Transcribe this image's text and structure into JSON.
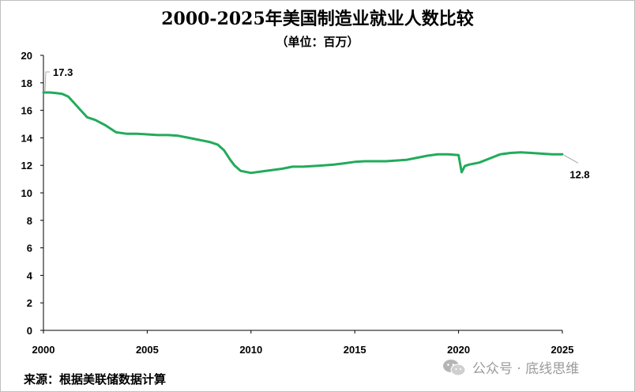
{
  "title": "2000-2025年美国制造业就业人数比较",
  "subtitle": "（单位：百万）",
  "source": "来源：根据美联储数据计算",
  "watermark": {
    "icon": "wechat-icon",
    "text": "公众号 · 底线思维"
  },
  "colors": {
    "line": "#22ab5a",
    "axis": "#000000",
    "leader": "#a6a6a6"
  },
  "chart_data": {
    "type": "line",
    "title": "2000-2025年美国制造业就业人数比较",
    "subtitle": "（单位：百万）",
    "xlim": [
      2000,
      2025
    ],
    "ylim": [
      0,
      20
    ],
    "xticks": [
      2000,
      2005,
      2010,
      2015,
      2020,
      2025
    ],
    "yticks": [
      0,
      2,
      4,
      6,
      8,
      10,
      12,
      14,
      16,
      18,
      20
    ],
    "grid": false,
    "series": [
      {
        "x": [
          2000,
          2000.3,
          2000.6,
          2000.9,
          2001.2,
          2001.5,
          2001.8,
          2002.1,
          2002.5,
          2003.0,
          2003.5,
          2004.0,
          2004.5,
          2005.0,
          2005.5,
          2006.0,
          2006.5,
          2007.0,
          2007.5,
          2008.0,
          2008.4,
          2008.7,
          2009.0,
          2009.2,
          2009.5,
          2010.0,
          2010.5,
          2011.0,
          2011.5,
          2012.0,
          2012.5,
          2013.0,
          2013.5,
          2014.0,
          2014.5,
          2015.0,
          2015.5,
          2016.0,
          2016.5,
          2017.0,
          2017.5,
          2018.0,
          2018.5,
          2019.0,
          2019.5,
          2020.0,
          2020.15,
          2020.3,
          2020.5,
          2021.0,
          2021.5,
          2022.0,
          2022.5,
          2023.0,
          2023.5,
          2024.0,
          2024.5,
          2025.0
        ],
        "y": [
          17.3,
          17.3,
          17.25,
          17.2,
          17.0,
          16.5,
          16.0,
          15.5,
          15.3,
          14.9,
          14.4,
          14.3,
          14.3,
          14.25,
          14.2,
          14.2,
          14.15,
          14.0,
          13.85,
          13.7,
          13.5,
          13.1,
          12.4,
          12.0,
          11.6,
          11.45,
          11.55,
          11.65,
          11.75,
          11.9,
          11.9,
          11.95,
          12.0,
          12.05,
          12.15,
          12.25,
          12.3,
          12.3,
          12.3,
          12.35,
          12.4,
          12.55,
          12.7,
          12.8,
          12.8,
          12.75,
          11.5,
          11.95,
          12.05,
          12.2,
          12.5,
          12.8,
          12.9,
          12.95,
          12.9,
          12.85,
          12.8,
          12.8
        ]
      }
    ],
    "annotations": [
      {
        "label": "17.3",
        "x": 2000,
        "y": 17.3
      },
      {
        "label": "12.8",
        "x": 2025,
        "y": 12.8
      }
    ]
  }
}
